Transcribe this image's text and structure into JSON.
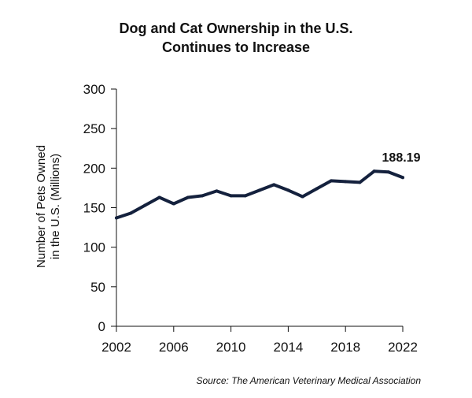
{
  "chart_data": {
    "type": "line",
    "title_lines": [
      "Dog and Cat Ownership in the U.S.",
      "Continues to Increase"
    ],
    "ylabel_lines": [
      "Number of Pets Owned",
      "in the U.S. (Millions)"
    ],
    "xlabel": "",
    "x_ticks": [
      "2002",
      "2006",
      "2010",
      "2014",
      "2018",
      "2022"
    ],
    "y_ticks": [
      "0",
      "50",
      "100",
      "150",
      "200",
      "250",
      "300"
    ],
    "xlim": [
      2002,
      2022
    ],
    "ylim": [
      0,
      300
    ],
    "grid": false,
    "series": [
      {
        "color": "#14213d",
        "x": [
          2002,
          2003,
          2004,
          2005,
          2006,
          2007,
          2008,
          2009,
          2010,
          2011,
          2012,
          2013,
          2014,
          2015,
          2016,
          2017,
          2018,
          2019,
          2020,
          2021,
          2022
        ],
        "values": [
          137,
          143,
          153,
          163,
          155,
          163,
          165,
          171,
          165,
          165,
          172,
          179,
          172,
          164,
          174,
          184,
          183,
          182,
          196,
          195,
          188.19
        ]
      }
    ],
    "annotation": {
      "text": "188.19",
      "x": 2022,
      "y": 188.19
    },
    "source": "Source: The American Veterinary Medical Association"
  }
}
